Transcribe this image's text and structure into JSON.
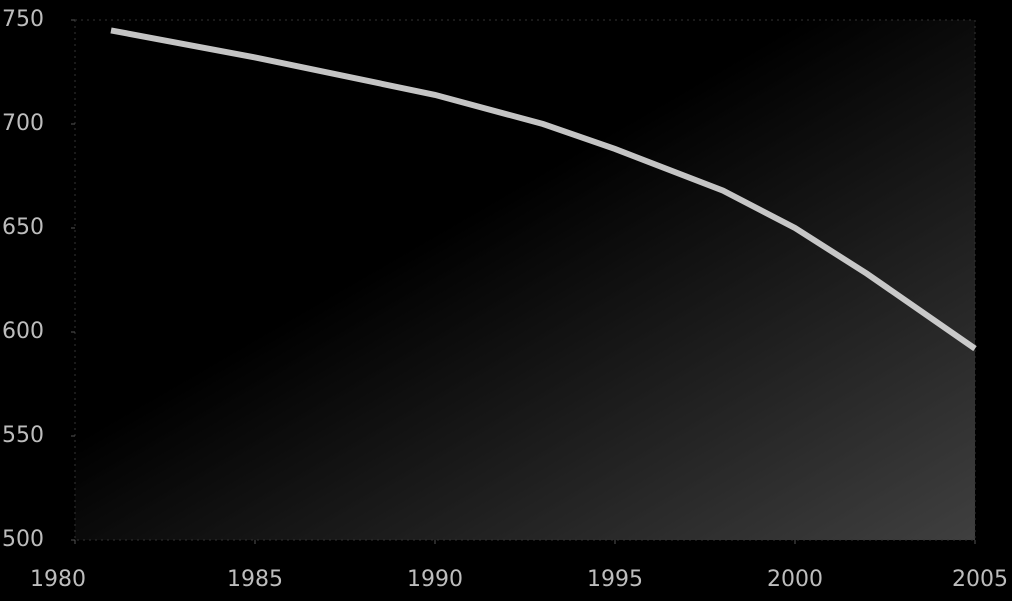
{
  "chart_data": {
    "type": "line",
    "x": [
      1981,
      1985,
      1990,
      1993,
      1995,
      1998,
      2000,
      2002,
      2005
    ],
    "series": [
      {
        "color": "#e6e6e6",
        "values": [
          745,
          732,
          714,
          700,
          688,
          668,
          650,
          628,
          592
        ]
      }
    ],
    "xlim": [
      1980,
      2005
    ],
    "xticks": [
      1980,
      1985,
      1990,
      1995,
      2000,
      2005
    ],
    "ylim": [
      500,
      750
    ],
    "yticks": [
      500,
      550,
      600,
      650,
      700,
      750
    ]
  }
}
